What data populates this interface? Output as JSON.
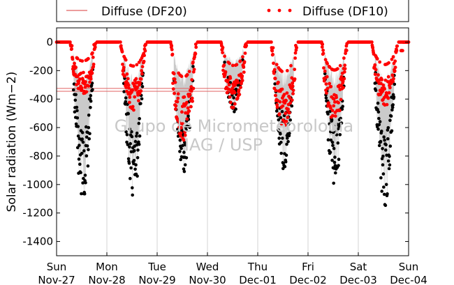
{
  "chart_data": {
    "type": "line",
    "ylabel": "Solar radiation (Wm−2)",
    "ylim": [
      -1500,
      100
    ],
    "yticks": [
      0,
      -200,
      -400,
      -600,
      -800,
      -1000,
      -1200,
      -1400
    ],
    "x_ticks": [
      {
        "day": "Sun",
        "date": "Nov-27"
      },
      {
        "day": "Mon",
        "date": "Nov-28"
      },
      {
        "day": "Tue",
        "date": "Nov-29"
      },
      {
        "day": "Wed",
        "date": "Nov-30"
      },
      {
        "day": "Thu",
        "date": "Dec-01"
      },
      {
        "day": "Fri",
        "date": "Dec-02"
      },
      {
        "day": "Sat",
        "date": "Dec-03"
      },
      {
        "day": "Sun",
        "date": "Dec-04"
      }
    ],
    "xlim_days": [
      0,
      7
    ],
    "grid": "vertical",
    "legend": {
      "placement": "top, outside plot",
      "entries": [
        {
          "label": "Diffuse (DF20)",
          "style": "line",
          "color": "#e06060"
        },
        {
          "label": "Diffuse (DF10)",
          "style": "dots",
          "color": "#ff0000"
        }
      ]
    },
    "watermark": [
      "Grupo de Micrometeorologia",
      "IAG / USP"
    ],
    "colors": {
      "df10": "#ff0000",
      "df20": "#e06060",
      "global": "#000000",
      "band": "#b4b4b4",
      "grid": "#c8c8c8"
    },
    "days": [
      {
        "day_index": 0,
        "diffuse_min": -380,
        "global_min": -1130
      },
      {
        "day_index": 1,
        "diffuse_min": -480,
        "global_min": -1120
      },
      {
        "day_index": 2,
        "diffuse_min": -700,
        "global_min": -920
      },
      {
        "day_index": 3,
        "diffuse_min": -470,
        "global_min": -520
      },
      {
        "day_index": 4,
        "diffuse_min": -600,
        "global_min": -920
      },
      {
        "day_index": 5,
        "diffuse_min": -560,
        "global_min": -1040
      },
      {
        "day_index": 6,
        "diffuse_min": -450,
        "global_min": -1170
      }
    ],
    "df20_reference_levels": [
      -325,
      -345
    ]
  }
}
